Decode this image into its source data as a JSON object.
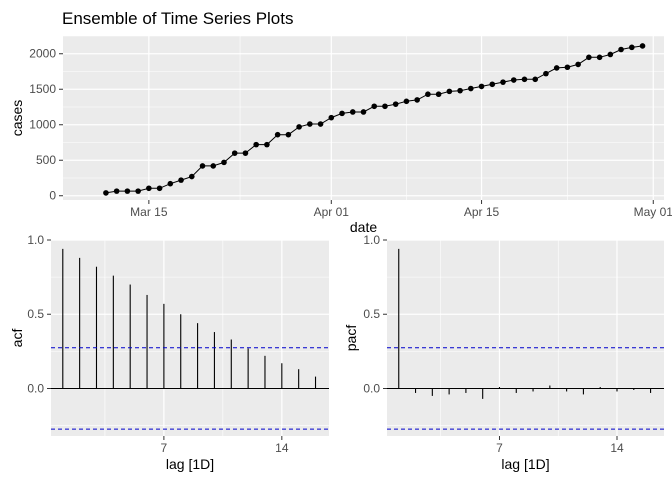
{
  "title": "Ensemble of Time Series Plots",
  "chart_data": [
    {
      "type": "line",
      "title": "Ensemble of Time Series Plots",
      "xlabel": "date",
      "ylabel": "cases",
      "x_ticks": [
        "Mar 15",
        "Apr 01",
        "Apr 15",
        "May 01"
      ],
      "y_ticks": [
        "0",
        "500",
        "1000",
        "1500",
        "2000"
      ],
      "ylim": [
        -60,
        2250
      ],
      "xlim": [
        "2020-03-07",
        "2020-05-02"
      ],
      "grid": true,
      "marker": "point",
      "x": [
        "2020-03-11",
        "2020-03-12",
        "2020-03-13",
        "2020-03-14",
        "2020-03-15",
        "2020-03-16",
        "2020-03-17",
        "2020-03-18",
        "2020-03-19",
        "2020-03-20",
        "2020-03-21",
        "2020-03-22",
        "2020-03-23",
        "2020-03-24",
        "2020-03-25",
        "2020-03-26",
        "2020-03-27",
        "2020-03-28",
        "2020-03-29",
        "2020-03-30",
        "2020-03-31",
        "2020-04-01",
        "2020-04-02",
        "2020-04-03",
        "2020-04-04",
        "2020-04-05",
        "2020-04-06",
        "2020-04-07",
        "2020-04-08",
        "2020-04-09",
        "2020-04-10",
        "2020-04-11",
        "2020-04-12",
        "2020-04-13",
        "2020-04-14",
        "2020-04-15",
        "2020-04-16",
        "2020-04-17",
        "2020-04-18",
        "2020-04-19",
        "2020-04-20",
        "2020-04-21",
        "2020-04-22",
        "2020-04-23",
        "2020-04-24",
        "2020-04-25",
        "2020-04-26",
        "2020-04-27",
        "2020-04-28",
        "2020-04-29",
        "2020-04-30"
      ],
      "values": [
        40,
        65,
        65,
        65,
        105,
        105,
        170,
        220,
        270,
        420,
        420,
        470,
        600,
        600,
        720,
        720,
        860,
        860,
        970,
        1010,
        1010,
        1100,
        1160,
        1180,
        1180,
        1260,
        1260,
        1290,
        1330,
        1350,
        1430,
        1430,
        1470,
        1480,
        1510,
        1540,
        1570,
        1600,
        1630,
        1640,
        1640,
        1720,
        1800,
        1810,
        1850,
        1950,
        1950,
        1990,
        2060,
        2090,
        2110
      ]
    },
    {
      "type": "bar",
      "xlabel": "lag [1D]",
      "ylabel": "acf",
      "x_ticks": [
        "7",
        "14"
      ],
      "y_ticks": [
        "0.0",
        "0.5",
        "1.0"
      ],
      "ylim": [
        -0.32,
        1.0
      ],
      "xlim": [
        0.3,
        16.8
      ],
      "lags": [
        1,
        2,
        3,
        4,
        5,
        6,
        7,
        8,
        9,
        10,
        11,
        12,
        13,
        14,
        15,
        16
      ],
      "values": [
        0.94,
        0.88,
        0.82,
        0.76,
        0.7,
        0.63,
        0.57,
        0.5,
        0.44,
        0.38,
        0.33,
        0.27,
        0.22,
        0.17,
        0.13,
        0.08
      ],
      "confidence_bound": 0.274,
      "grid": true
    },
    {
      "type": "bar",
      "xlabel": "lag [1D]",
      "ylabel": "pacf",
      "x_ticks": [
        "7",
        "14"
      ],
      "y_ticks": [
        "0.0",
        "0.5",
        "1.0"
      ],
      "ylim": [
        -0.32,
        1.0
      ],
      "xlim": [
        0.3,
        16.8
      ],
      "lags": [
        1,
        2,
        3,
        4,
        5,
        6,
        7,
        8,
        9,
        10,
        11,
        12,
        13,
        14,
        15,
        16
      ],
      "values": [
        0.94,
        -0.03,
        -0.05,
        -0.04,
        -0.03,
        -0.07,
        0.01,
        -0.03,
        -0.02,
        0.02,
        -0.02,
        -0.04,
        0.01,
        -0.02,
        -0.01,
        -0.03
      ],
      "confidence_bound": 0.274,
      "grid": true
    }
  ],
  "colors": {
    "panel_bg": "#ebebeb",
    "grid": "#ffffff",
    "series": "#000000",
    "bounds": "#0000cc",
    "tick_text": "#4d4d4d"
  }
}
